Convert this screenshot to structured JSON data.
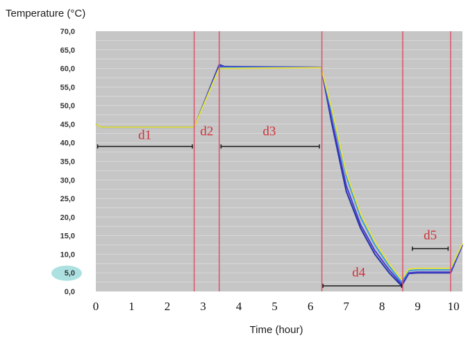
{
  "chart_data": {
    "type": "line",
    "ylabel": "Temperature (°C)",
    "xlabel": "Time (hour)",
    "xlim": [
      0,
      10.25
    ],
    "ylim": [
      0,
      70
    ],
    "x_ticks": [
      "0",
      "1",
      "2",
      "3",
      "4",
      "5",
      "6",
      "7",
      "8",
      "9",
      "10"
    ],
    "y_ticks": [
      "0,0",
      "5,0",
      "10,0",
      "15,0",
      "20,0",
      "25,0",
      "30,0",
      "35,0",
      "40,0",
      "45,0",
      "50,0",
      "55,0",
      "60,0",
      "65,0",
      "70,0"
    ],
    "highlighted_ytick": "5,0",
    "grid": true,
    "colors": {
      "plot_bg": "#c6c6c6",
      "grid": "#d9d9d9",
      "phase_lines": "#e0506a",
      "arrows": "#1a1a1a",
      "highlight": "#9fdcdc"
    },
    "phase_boundaries": [
      2.75,
      3.45,
      6.32,
      8.58,
      9.92
    ],
    "phases": [
      {
        "label": "d1",
        "x_start": 0.05,
        "x_end": 2.7,
        "y": 39,
        "label_x": 1.37,
        "label_y": 41
      },
      {
        "label": "d2",
        "x_start": null,
        "x_end": null,
        "y": null,
        "label_x": 3.1,
        "label_y": 42
      },
      {
        "label": "d3",
        "x_start": 3.5,
        "x_end": 6.25,
        "y": 39,
        "label_x": 4.85,
        "label_y": 42
      },
      {
        "label": "d4",
        "x_start": 6.35,
        "x_end": 8.55,
        "y": 1.5,
        "label_x": 7.35,
        "label_y": 4
      },
      {
        "label": "d5",
        "x_start": 8.85,
        "x_end": 9.85,
        "y": 11.5,
        "label_x": 9.35,
        "label_y": 14
      }
    ],
    "series": [
      {
        "color": "#2233aa",
        "values": [
          [
            0,
            45
          ],
          [
            0.15,
            44.2
          ],
          [
            2.75,
            44.2
          ],
          [
            3.45,
            61
          ],
          [
            3.6,
            60.5
          ],
          [
            6.3,
            60.3
          ],
          [
            6.6,
            45
          ],
          [
            7,
            27
          ],
          [
            7.4,
            17
          ],
          [
            7.8,
            10
          ],
          [
            8.2,
            5
          ],
          [
            8.55,
            1.5
          ],
          [
            8.75,
            4.8
          ],
          [
            9,
            5
          ],
          [
            9.92,
            5
          ],
          [
            10.25,
            12.5
          ]
        ]
      },
      {
        "color": "#4a3acc",
        "values": [
          [
            0,
            45
          ],
          [
            0.15,
            44.2
          ],
          [
            2.75,
            44.2
          ],
          [
            3.45,
            60.6
          ],
          [
            3.6,
            60.4
          ],
          [
            6.3,
            60.3
          ],
          [
            6.6,
            46
          ],
          [
            7,
            28.5
          ],
          [
            7.4,
            18
          ],
          [
            7.8,
            11
          ],
          [
            8.2,
            5.8
          ],
          [
            8.55,
            2
          ],
          [
            8.75,
            5
          ],
          [
            9,
            5.2
          ],
          [
            9.92,
            5.2
          ],
          [
            10.25,
            12.5
          ]
        ]
      },
      {
        "color": "#3aa0e0",
        "values": [
          [
            0,
            45
          ],
          [
            0.15,
            44.2
          ],
          [
            2.75,
            44.2
          ],
          [
            3.45,
            60.2
          ],
          [
            3.6,
            60.2
          ],
          [
            6.3,
            60.2
          ],
          [
            6.6,
            48
          ],
          [
            7,
            31
          ],
          [
            7.4,
            20
          ],
          [
            7.8,
            12.5
          ],
          [
            8.2,
            6.8
          ],
          [
            8.55,
            2.5
          ],
          [
            8.75,
            5.6
          ],
          [
            9,
            5.8
          ],
          [
            9.92,
            5.8
          ],
          [
            10.25,
            13
          ]
        ]
      },
      {
        "color": "#e8e040",
        "values": [
          [
            0,
            45
          ],
          [
            0.15,
            44.2
          ],
          [
            2.75,
            44.2
          ],
          [
            3.45,
            60
          ],
          [
            3.6,
            60
          ],
          [
            6.3,
            60.2
          ],
          [
            6.6,
            49
          ],
          [
            7,
            32
          ],
          [
            7.4,
            21
          ],
          [
            7.8,
            13.5
          ],
          [
            8.2,
            7.5
          ],
          [
            8.55,
            3.2
          ],
          [
            8.75,
            6
          ],
          [
            9,
            6.2
          ],
          [
            9.92,
            6.2
          ],
          [
            10.25,
            13
          ]
        ]
      }
    ]
  }
}
